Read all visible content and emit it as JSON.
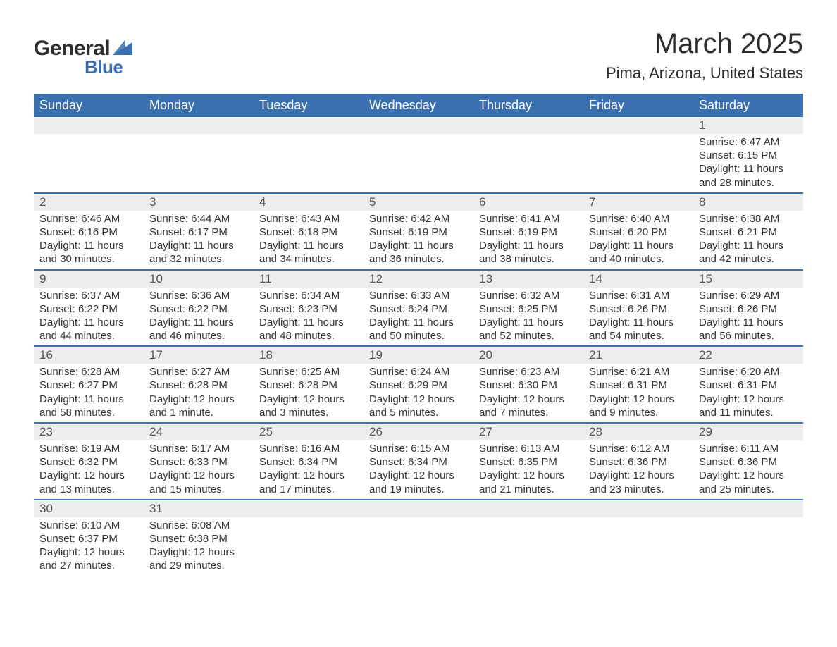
{
  "logo": {
    "text1": "General",
    "text2": "Blue",
    "sail_color": "#3b70b0"
  },
  "title": "March 2025",
  "location": "Pima, Arizona, United States",
  "colors": {
    "header_bg": "#3b70b0",
    "header_text": "#ffffff",
    "daynum_bg": "#ededed",
    "row_divider": "#3b70b0",
    "body_text": "#333333",
    "daynum_text": "#555555"
  },
  "day_headers": [
    "Sunday",
    "Monday",
    "Tuesday",
    "Wednesday",
    "Thursday",
    "Friday",
    "Saturday"
  ],
  "weeks": [
    [
      null,
      null,
      null,
      null,
      null,
      null,
      {
        "n": "1",
        "sunrise": "6:47 AM",
        "sunset": "6:15 PM",
        "daylight": "11 hours and 28 minutes."
      }
    ],
    [
      {
        "n": "2",
        "sunrise": "6:46 AM",
        "sunset": "6:16 PM",
        "daylight": "11 hours and 30 minutes."
      },
      {
        "n": "3",
        "sunrise": "6:44 AM",
        "sunset": "6:17 PM",
        "daylight": "11 hours and 32 minutes."
      },
      {
        "n": "4",
        "sunrise": "6:43 AM",
        "sunset": "6:18 PM",
        "daylight": "11 hours and 34 minutes."
      },
      {
        "n": "5",
        "sunrise": "6:42 AM",
        "sunset": "6:19 PM",
        "daylight": "11 hours and 36 minutes."
      },
      {
        "n": "6",
        "sunrise": "6:41 AM",
        "sunset": "6:19 PM",
        "daylight": "11 hours and 38 minutes."
      },
      {
        "n": "7",
        "sunrise": "6:40 AM",
        "sunset": "6:20 PM",
        "daylight": "11 hours and 40 minutes."
      },
      {
        "n": "8",
        "sunrise": "6:38 AM",
        "sunset": "6:21 PM",
        "daylight": "11 hours and 42 minutes."
      }
    ],
    [
      {
        "n": "9",
        "sunrise": "6:37 AM",
        "sunset": "6:22 PM",
        "daylight": "11 hours and 44 minutes."
      },
      {
        "n": "10",
        "sunrise": "6:36 AM",
        "sunset": "6:22 PM",
        "daylight": "11 hours and 46 minutes."
      },
      {
        "n": "11",
        "sunrise": "6:34 AM",
        "sunset": "6:23 PM",
        "daylight": "11 hours and 48 minutes."
      },
      {
        "n": "12",
        "sunrise": "6:33 AM",
        "sunset": "6:24 PM",
        "daylight": "11 hours and 50 minutes."
      },
      {
        "n": "13",
        "sunrise": "6:32 AM",
        "sunset": "6:25 PM",
        "daylight": "11 hours and 52 minutes."
      },
      {
        "n": "14",
        "sunrise": "6:31 AM",
        "sunset": "6:26 PM",
        "daylight": "11 hours and 54 minutes."
      },
      {
        "n": "15",
        "sunrise": "6:29 AM",
        "sunset": "6:26 PM",
        "daylight": "11 hours and 56 minutes."
      }
    ],
    [
      {
        "n": "16",
        "sunrise": "6:28 AM",
        "sunset": "6:27 PM",
        "daylight": "11 hours and 58 minutes."
      },
      {
        "n": "17",
        "sunrise": "6:27 AM",
        "sunset": "6:28 PM",
        "daylight": "12 hours and 1 minute."
      },
      {
        "n": "18",
        "sunrise": "6:25 AM",
        "sunset": "6:28 PM",
        "daylight": "12 hours and 3 minutes."
      },
      {
        "n": "19",
        "sunrise": "6:24 AM",
        "sunset": "6:29 PM",
        "daylight": "12 hours and 5 minutes."
      },
      {
        "n": "20",
        "sunrise": "6:23 AM",
        "sunset": "6:30 PM",
        "daylight": "12 hours and 7 minutes."
      },
      {
        "n": "21",
        "sunrise": "6:21 AM",
        "sunset": "6:31 PM",
        "daylight": "12 hours and 9 minutes."
      },
      {
        "n": "22",
        "sunrise": "6:20 AM",
        "sunset": "6:31 PM",
        "daylight": "12 hours and 11 minutes."
      }
    ],
    [
      {
        "n": "23",
        "sunrise": "6:19 AM",
        "sunset": "6:32 PM",
        "daylight": "12 hours and 13 minutes."
      },
      {
        "n": "24",
        "sunrise": "6:17 AM",
        "sunset": "6:33 PM",
        "daylight": "12 hours and 15 minutes."
      },
      {
        "n": "25",
        "sunrise": "6:16 AM",
        "sunset": "6:34 PM",
        "daylight": "12 hours and 17 minutes."
      },
      {
        "n": "26",
        "sunrise": "6:15 AM",
        "sunset": "6:34 PM",
        "daylight": "12 hours and 19 minutes."
      },
      {
        "n": "27",
        "sunrise": "6:13 AM",
        "sunset": "6:35 PM",
        "daylight": "12 hours and 21 minutes."
      },
      {
        "n": "28",
        "sunrise": "6:12 AM",
        "sunset": "6:36 PM",
        "daylight": "12 hours and 23 minutes."
      },
      {
        "n": "29",
        "sunrise": "6:11 AM",
        "sunset": "6:36 PM",
        "daylight": "12 hours and 25 minutes."
      }
    ],
    [
      {
        "n": "30",
        "sunrise": "6:10 AM",
        "sunset": "6:37 PM",
        "daylight": "12 hours and 27 minutes."
      },
      {
        "n": "31",
        "sunrise": "6:08 AM",
        "sunset": "6:38 PM",
        "daylight": "12 hours and 29 minutes."
      },
      null,
      null,
      null,
      null,
      null
    ]
  ],
  "labels": {
    "sunrise": "Sunrise: ",
    "sunset": "Sunset: ",
    "daylight": "Daylight: "
  }
}
